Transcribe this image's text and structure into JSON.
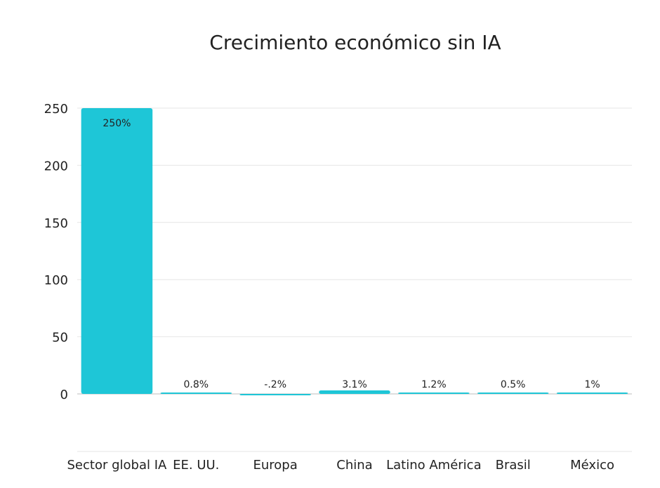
{
  "chart_data": {
    "type": "bar",
    "title": "Crecimiento económico sin IA",
    "xlabel": "",
    "ylabel": "",
    "ylim": [
      0,
      250
    ],
    "yticks": [
      0,
      50,
      100,
      150,
      200,
      250
    ],
    "grid": true,
    "legend": "none",
    "bar_color": "#1EC6D7",
    "categories": [
      "Sector global IA",
      "EE. UU.",
      "Europa",
      "China",
      "Latino América",
      "Brasil",
      "México"
    ],
    "values": [
      250,
      0.8,
      -0.2,
      3.1,
      1.2,
      0.5,
      1
    ],
    "data_labels": [
      "250%",
      "0.8%",
      "-.2%",
      "3.1%",
      "1.2%",
      "0.5%",
      "1%"
    ]
  }
}
